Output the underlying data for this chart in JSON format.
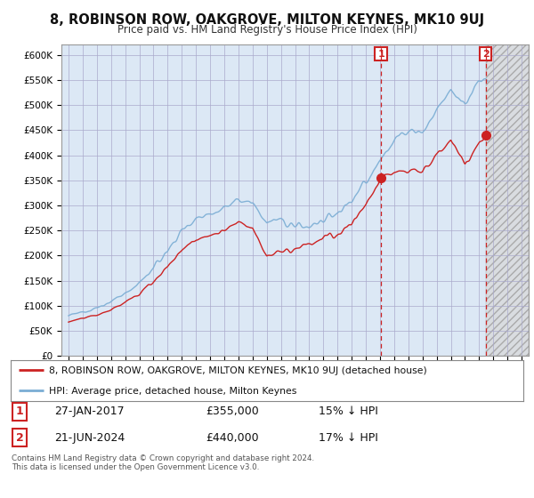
{
  "title": "8, ROBINSON ROW, OAKGROVE, MILTON KEYNES, MK10 9UJ",
  "subtitle": "Price paid vs. HM Land Registry's House Price Index (HPI)",
  "ylim": [
    0,
    620000
  ],
  "yticks": [
    0,
    50000,
    100000,
    150000,
    200000,
    250000,
    300000,
    350000,
    400000,
    450000,
    500000,
    550000,
    600000
  ],
  "ytick_labels": [
    "£0",
    "£50K",
    "£100K",
    "£150K",
    "£200K",
    "£250K",
    "£300K",
    "£350K",
    "£400K",
    "£450K",
    "£500K",
    "£550K",
    "£600K"
  ],
  "hpi_color": "#7aadd4",
  "price_color": "#cc2222",
  "sale1_date": 2017.07,
  "sale1_price": 355000,
  "sale2_date": 2024.47,
  "sale2_price": 440000,
  "legend_line1": "8, ROBINSON ROW, OAKGROVE, MILTON KEYNES, MK10 9UJ (detached house)",
  "legend_line2": "HPI: Average price, detached house, Milton Keynes",
  "footer": "Contains HM Land Registry data © Crown copyright and database right 2024.\nThis data is licensed under the Open Government Licence v3.0.",
  "background_color": "#ffffff",
  "plot_bg_color": "#dce8f5",
  "plot_bg_color_future": "#d0d0d0",
  "grid_color": "#aaaacc",
  "xmin": 1994.5,
  "xmax": 2027.5
}
